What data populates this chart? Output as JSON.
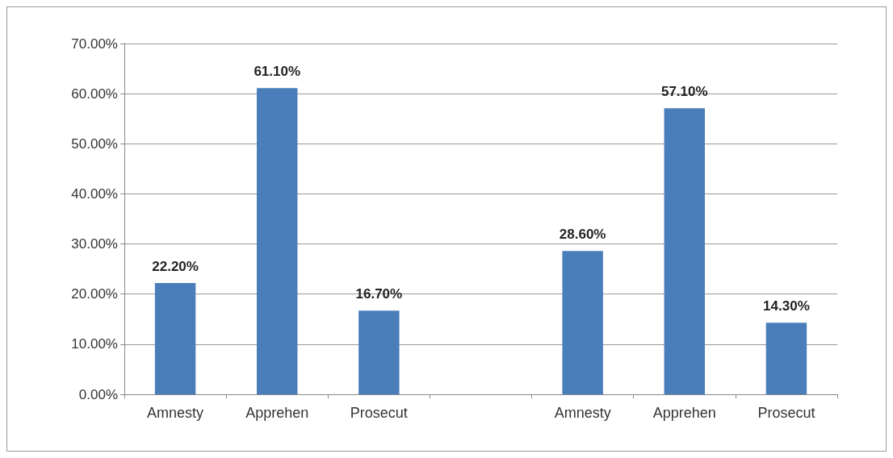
{
  "chart_data": {
    "type": "bar",
    "categories": [
      "Amnesty",
      "Apprehen",
      "Prosecut",
      null,
      "Amnesty",
      "Apprehen",
      "Prosecut"
    ],
    "values": [
      22.2,
      61.1,
      16.7,
      null,
      28.6,
      57.1,
      14.3
    ],
    "value_labels": [
      "22.20%",
      "61.10%",
      "16.70%",
      null,
      "28.60%",
      "57.10%",
      "14.30%"
    ],
    "color": "#4a7ebb",
    "ylim": [
      0,
      70
    ],
    "yticks": [
      {
        "value": 0,
        "label": "0.00%"
      },
      {
        "value": 10,
        "label": "10.00%"
      },
      {
        "value": 20,
        "label": "20.00%"
      },
      {
        "value": 30,
        "label": "30.00%"
      },
      {
        "value": 40,
        "label": "40.00%"
      },
      {
        "value": 50,
        "label": "50.00%"
      },
      {
        "value": 60,
        "label": "60.00%"
      },
      {
        "value": 70,
        "label": "70.00%"
      }
    ],
    "grid": true
  }
}
